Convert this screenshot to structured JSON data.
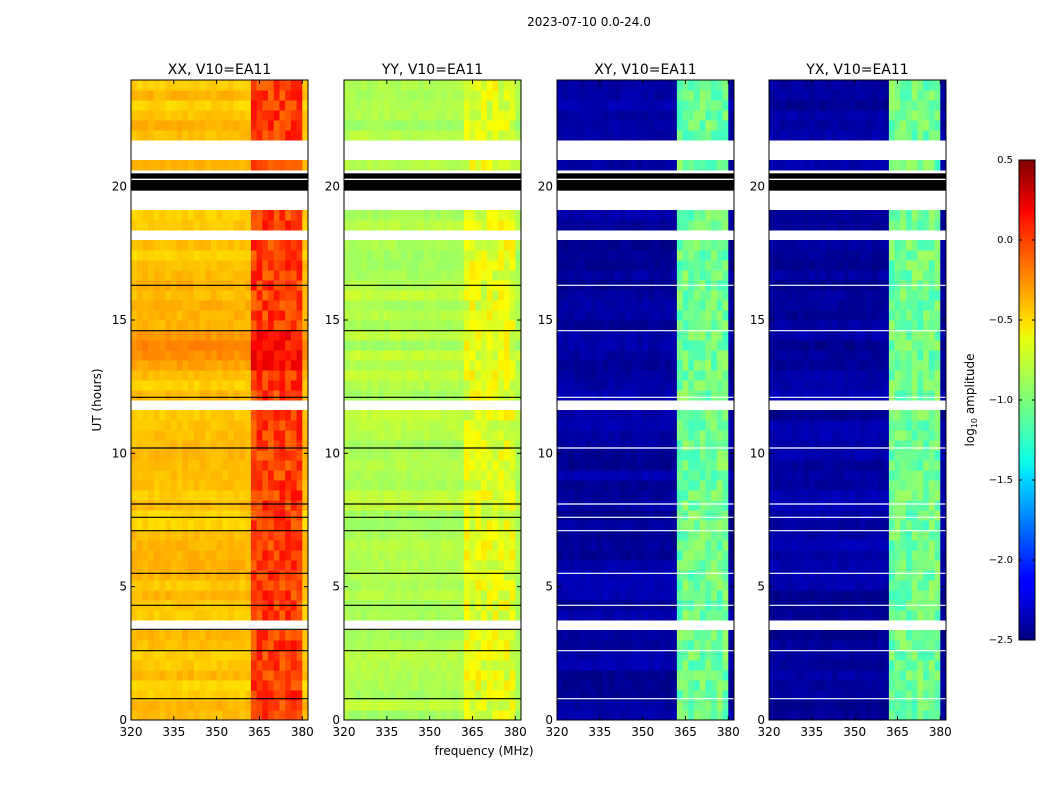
{
  "figure_title": "2023-07-10 0.0-24.0",
  "shared_xlabel": "frequency (MHz)",
  "shared_ylabel": "UT (hours)",
  "colorbar": {
    "label": "log10 amplitude",
    "label_main": "log",
    "label_sub": "10",
    "label_rest": " amplitude",
    "range": [
      -2.5,
      0.5
    ],
    "ticks": [
      0.5,
      0.0,
      -0.5,
      -1.0,
      -1.5,
      -2.0,
      -2.5
    ],
    "tick_labels": [
      "0.5",
      "0.0",
      "−0.5",
      "−1.0",
      "−1.5",
      "−2.0",
      "−2.5"
    ],
    "colormap": "jet"
  },
  "chart_data": [
    {
      "type": "heatmap",
      "title": "XX, V10=EA11",
      "xlabel": "",
      "ylabel": "UT (hours)",
      "xlim": [
        320,
        382
      ],
      "ylim": [
        0,
        24
      ],
      "x_ticks": [
        320,
        335,
        350,
        365,
        380
      ],
      "x_tick_labels": [
        "320",
        "335",
        "350",
        "365",
        "380"
      ],
      "y_ticks": [
        0,
        5,
        10,
        15,
        20
      ],
      "y_tick_labels": [
        "0",
        "5",
        "10",
        "15",
        "20"
      ],
      "base_level": -0.45,
      "rfi_band_mhz": [
        363,
        380
      ],
      "rfi_level": -0.05,
      "warm_interval_ut": [
        13.0,
        14.6
      ]
    },
    {
      "type": "heatmap",
      "title": "YY, V10=EA11",
      "xlabel": "frequency (MHz)",
      "ylabel": "",
      "xlim": [
        320,
        382
      ],
      "ylim": [
        0,
        24
      ],
      "x_ticks": [
        320,
        335,
        350,
        365,
        380
      ],
      "x_tick_labels": [
        "320",
        "335",
        "350",
        "365",
        "380"
      ],
      "y_ticks": [
        0,
        5,
        10,
        15,
        20
      ],
      "y_tick_labels": [
        "0",
        "5",
        "10",
        "15",
        "20"
      ],
      "base_level": -0.85,
      "rfi_band_mhz": [
        363,
        380
      ],
      "rfi_level": -0.7
    },
    {
      "type": "heatmap",
      "title": "XY, V10=EA11",
      "xlabel": "",
      "ylabel": "",
      "xlim": [
        320,
        382
      ],
      "ylim": [
        0,
        24
      ],
      "x_ticks": [
        320,
        335,
        350,
        365,
        380
      ],
      "x_tick_labels": [
        "320",
        "335",
        "350",
        "365",
        "380"
      ],
      "y_ticks": [
        0,
        5,
        10,
        15,
        20
      ],
      "y_tick_labels": [
        "0",
        "5",
        "10",
        "15",
        "20"
      ],
      "base_level": -2.4,
      "rfi_band_mhz": [
        363,
        380
      ],
      "rfi_level": -1.05
    },
    {
      "type": "heatmap",
      "title": "YX, V10=EA11",
      "xlabel": "",
      "ylabel": "",
      "xlim": [
        320,
        382
      ],
      "ylim": [
        0,
        24
      ],
      "x_ticks": [
        320,
        335,
        350,
        365,
        380
      ],
      "x_tick_labels": [
        "320",
        "335",
        "350",
        "365",
        "380"
      ],
      "y_ticks": [
        0,
        5,
        10,
        15,
        20
      ],
      "y_tick_labels": [
        "0",
        "5",
        "10",
        "15",
        "20"
      ],
      "base_level": -2.4,
      "rfi_band_mhz": [
        363,
        380
      ],
      "rfi_level": -1.05
    }
  ],
  "flagged_ut_intervals": [
    [
      19.3,
      20.5
    ],
    [
      20.9,
      21.2
    ],
    [
      21.4,
      21.7
    ],
    [
      17.9,
      18.3
    ],
    [
      11.8,
      11.95
    ],
    [
      3.45,
      3.7
    ]
  ],
  "black_ut_intervals": [
    [
      19.85,
      20.25
    ],
    [
      20.3,
      20.5
    ]
  ]
}
